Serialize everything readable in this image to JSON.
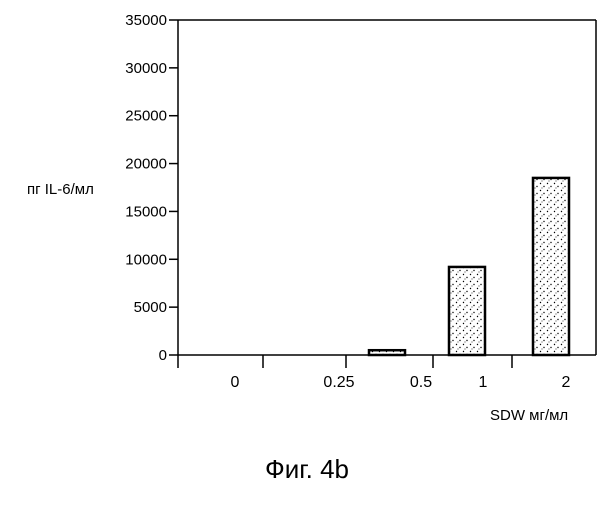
{
  "chart_data": {
    "type": "bar",
    "categories": [
      "0",
      "0.25",
      "0.5",
      "1",
      "2"
    ],
    "values": [
      0,
      0,
      500,
      9200,
      18500
    ],
    "ylabel": "пг IL-6/мл",
    "xlabel": "SDW мг/мл",
    "ylim": [
      0,
      35000
    ],
    "yticks": [
      "0",
      "5000",
      "10000",
      "15000",
      "20000",
      "25000",
      "30000",
      "35000"
    ],
    "caption": "Фиг. 4b",
    "grid": false,
    "colors": {
      "fill": "#e8e8e8",
      "stroke": "#000000",
      "stipple": "#000000"
    }
  }
}
